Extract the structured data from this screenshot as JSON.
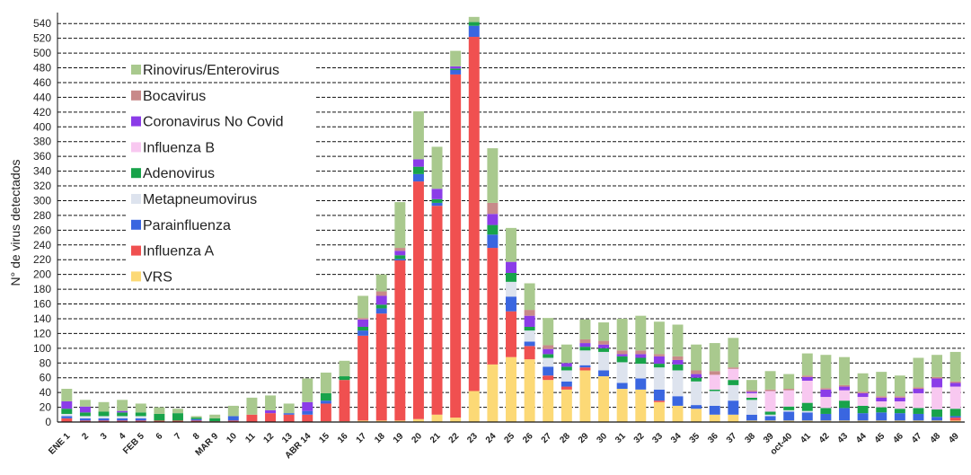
{
  "chart_data": {
    "type": "bar",
    "stacked": true,
    "ylabel": "N° de virus detectados",
    "ylim": [
      0,
      550
    ],
    "yticks": [
      0,
      20,
      40,
      60,
      80,
      100,
      120,
      140,
      160,
      180,
      200,
      220,
      240,
      260,
      280,
      300,
      320,
      340,
      360,
      380,
      400,
      420,
      440,
      460,
      480,
      500,
      520,
      540
    ],
    "categories": [
      "ENE 1",
      "2",
      "3",
      "4",
      "FEB 5",
      "6",
      "7",
      "8",
      "MAR 9",
      "10",
      "11",
      "12",
      "13",
      "ABR 14",
      "15",
      "16",
      "17",
      "18",
      "19",
      "20",
      "21",
      "22",
      "23",
      "24",
      "25",
      "26",
      "27",
      "28",
      "29",
      "30",
      "31",
      "32",
      "33",
      "34",
      "35",
      "36",
      "37",
      "38",
      "39",
      "oct-40",
      "41",
      "42",
      "43",
      "44",
      "45",
      "46",
      "47",
      "48",
      "49"
    ],
    "series": [
      {
        "name": "VRS",
        "color": "#FCD976",
        "values": [
          0,
          0,
          0,
          0,
          0,
          0,
          0,
          0,
          0,
          0,
          0,
          0,
          0,
          0,
          1,
          1,
          2,
          2,
          2,
          4,
          10,
          6,
          42,
          78,
          88,
          85,
          57,
          44,
          70,
          62,
          45,
          44,
          27,
          22,
          18,
          10,
          10,
          2,
          2,
          2,
          2,
          2,
          2,
          2,
          2,
          2,
          2,
          2,
          2
        ]
      },
      {
        "name": "Influenza A",
        "color": "#F05050",
        "values": [
          5,
          2,
          2,
          2,
          2,
          2,
          2,
          2,
          1,
          2,
          10,
          12,
          10,
          10,
          24,
          56,
          115,
          145,
          217,
          322,
          283,
          465,
          480,
          158,
          62,
          18,
          6,
          4,
          4,
          0,
          0,
          0,
          2,
          0,
          0,
          0,
          0,
          0,
          0,
          0,
          0,
          0,
          0,
          0,
          0,
          0,
          0,
          0,
          4
        ]
      },
      {
        "name": "Parainfluenza",
        "color": "#3A66E0",
        "values": [
          3,
          3,
          3,
          3,
          3,
          0,
          0,
          2,
          0,
          6,
          0,
          0,
          2,
          5,
          4,
          0,
          7,
          7,
          2,
          10,
          4,
          6,
          15,
          18,
          20,
          6,
          12,
          7,
          3,
          8,
          8,
          15,
          15,
          13,
          5,
          12,
          19,
          8,
          6,
          12,
          11,
          9,
          17,
          10,
          11,
          10,
          9,
          5,
          2
        ]
      },
      {
        "name": "Metapneumovirus",
        "color": "#DDE3EE",
        "values": [
          3,
          3,
          3,
          3,
          3,
          0,
          0,
          0,
          0,
          0,
          0,
          0,
          0,
          0,
          0,
          0,
          0,
          0,
          0,
          0,
          0,
          0,
          0,
          0,
          20,
          15,
          12,
          15,
          20,
          25,
          28,
          20,
          30,
          35,
          32,
          20,
          21,
          20,
          2,
          2,
          2,
          0,
          0,
          0,
          0,
          0,
          0,
          0,
          0
        ]
      },
      {
        "name": "Adenovirus",
        "color": "#18A34A",
        "values": [
          7,
          5,
          6,
          5,
          5,
          9,
          10,
          2,
          4,
          0,
          0,
          0,
          0,
          0,
          10,
          5,
          5,
          5,
          5,
          10,
          5,
          2,
          5,
          13,
          12,
          5,
          5,
          5,
          5,
          5,
          8,
          8,
          5,
          8,
          5,
          2,
          7,
          3,
          4,
          5,
          11,
          8,
          10,
          10,
          7,
          6,
          8,
          10,
          10
        ]
      },
      {
        "name": "Influenza B",
        "color": "#F8C8F0",
        "values": [
          0,
          0,
          0,
          0,
          0,
          0,
          0,
          0,
          0,
          0,
          0,
          0,
          0,
          0,
          0,
          0,
          0,
          0,
          0,
          0,
          0,
          0,
          0,
          0,
          0,
          0,
          0,
          0,
          0,
          0,
          0,
          0,
          0,
          0,
          0,
          20,
          15,
          6,
          28,
          22,
          30,
          15,
          14,
          12,
          8,
          10,
          20,
          30,
          30
        ]
      },
      {
        "name": "Coronavirus No Covid",
        "color": "#8B3CE8",
        "values": [
          10,
          8,
          0,
          2,
          0,
          0,
          0,
          0,
          0,
          0,
          0,
          4,
          0,
          12,
          0,
          0,
          10,
          12,
          6,
          10,
          14,
          3,
          0,
          15,
          15,
          15,
          7,
          5,
          5,
          5,
          3,
          5,
          10,
          6,
          5,
          0,
          0,
          2,
          0,
          0,
          5,
          10,
          5,
          5,
          5,
          5,
          6,
          12,
          5
        ]
      },
      {
        "name": "Bocavirus",
        "color": "#C88A8A",
        "values": [
          0,
          0,
          0,
          0,
          0,
          0,
          0,
          0,
          0,
          0,
          0,
          0,
          0,
          0,
          0,
          0,
          2,
          6,
          4,
          0,
          0,
          0,
          0,
          15,
          0,
          8,
          5,
          0,
          5,
          5,
          5,
          5,
          3,
          5,
          5,
          5,
          2,
          2,
          2,
          2,
          2,
          2,
          2,
          2,
          2,
          2,
          2,
          2,
          2
        ]
      },
      {
        "name": "Rinovirus/Enterovirus",
        "color": "#A9C98E",
        "values": [
          17,
          9,
          13,
          15,
          12,
          9,
          6,
          2,
          5,
          14,
          23,
          20,
          13,
          32,
          28,
          21,
          30,
          23,
          62,
          65,
          57,
          21,
          7,
          74,
          46,
          36,
          37,
          25,
          27,
          25,
          43,
          47,
          44,
          43,
          35,
          38,
          40,
          14,
          25,
          20,
          30,
          45,
          38,
          25,
          33,
          28,
          40,
          30,
          40
        ]
      }
    ],
    "legend": {
      "position": "top-left",
      "order": [
        "Rinovirus/Enterovirus",
        "Bocavirus",
        "Coronavirus No Covid",
        "Influenza B",
        "Adenovirus",
        "Metapneumovirus",
        "Parainfluenza",
        "Influenza A",
        "VRS"
      ]
    }
  }
}
